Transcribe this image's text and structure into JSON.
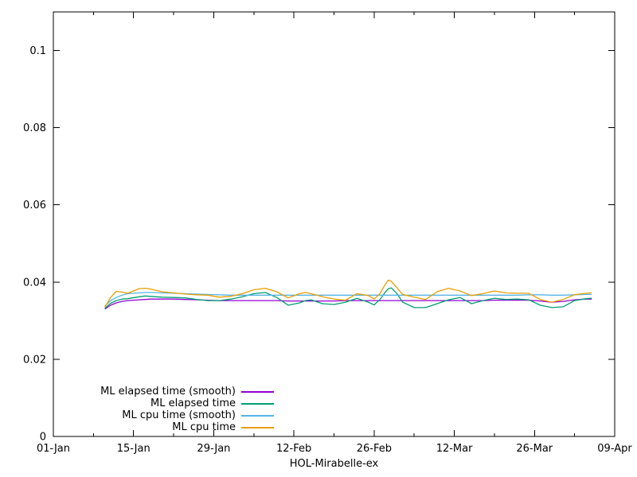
{
  "figure": {
    "background": "#ffffff",
    "text_color": "#000000",
    "axis_color": "#000000"
  },
  "chart_data": {
    "type": "line",
    "title": "",
    "xlabel": "HOL-Mirabelle-ex",
    "ylabel": "",
    "x_unit": "days since 01-Jan",
    "xlim": [
      0,
      98
    ],
    "ylim": [
      0,
      0.11
    ],
    "grid": false,
    "legend_position": "bottom-left-inside",
    "xticks": [
      0,
      14,
      28,
      42,
      56,
      70,
      84,
      98
    ],
    "xtick_labels": [
      "01-Jan",
      "15-Jan",
      "29-Jan",
      "12-Feb",
      "26-Feb",
      "12-Mar",
      "26-Mar",
      "09-Apr"
    ],
    "minor_xticks": [
      7,
      21,
      35,
      49,
      63,
      77,
      91
    ],
    "yticks": [
      0,
      0.02,
      0.04,
      0.06,
      0.08,
      0.1
    ],
    "ytick_labels": [
      "0",
      "0.02",
      "0.04",
      "0.06",
      "0.08",
      "0.1"
    ],
    "x": [
      9,
      10,
      11,
      12,
      13,
      15,
      16,
      17,
      19,
      21,
      23,
      25,
      27,
      29,
      31,
      33,
      35,
      37,
      39,
      41,
      43,
      44,
      45,
      47,
      49,
      51,
      53,
      55,
      56,
      57,
      58,
      58.5,
      59,
      60,
      61,
      63,
      65,
      67,
      69,
      71,
      73,
      75,
      77,
      79,
      81,
      83,
      85,
      87,
      89,
      91,
      93,
      94
    ],
    "series": [
      {
        "name": "ML elapsed time (smooth)",
        "color": "#9400d3",
        "values": [
          0.033,
          0.034,
          0.0346,
          0.035,
          0.0352,
          0.0354,
          0.0355,
          0.0356,
          0.0356,
          0.0356,
          0.0355,
          0.0354,
          0.0353,
          0.0352,
          0.0352,
          0.0352,
          0.0352,
          0.0352,
          0.0352,
          0.0351,
          0.0351,
          0.0351,
          0.0351,
          0.0351,
          0.0351,
          0.0352,
          0.0352,
          0.0352,
          0.0352,
          0.0352,
          0.0352,
          0.0352,
          0.0352,
          0.0352,
          0.0352,
          0.0352,
          0.0352,
          0.0352,
          0.0352,
          0.0352,
          0.0352,
          0.0352,
          0.0353,
          0.0353,
          0.0353,
          0.0353,
          0.0351,
          0.0348,
          0.035,
          0.0354,
          0.0356,
          0.0356
        ]
      },
      {
        "name": "ML elapsed time",
        "color": "#009e73",
        "values": [
          0.0332,
          0.0345,
          0.0352,
          0.0356,
          0.0357,
          0.0362,
          0.0364,
          0.0363,
          0.0361,
          0.036,
          0.0359,
          0.0355,
          0.0352,
          0.0352,
          0.0356,
          0.0362,
          0.037,
          0.0373,
          0.036,
          0.034,
          0.0346,
          0.0352,
          0.0354,
          0.0344,
          0.0342,
          0.0348,
          0.0358,
          0.0348,
          0.0341,
          0.0355,
          0.0375,
          0.0383,
          0.0385,
          0.037,
          0.0348,
          0.0334,
          0.0334,
          0.0344,
          0.0354,
          0.036,
          0.0344,
          0.0352,
          0.0358,
          0.0355,
          0.0356,
          0.0354,
          0.034,
          0.0334,
          0.0336,
          0.0352,
          0.0357,
          0.0358
        ]
      },
      {
        "name": "ML cpu time (smooth)",
        "color": "#56b4e9",
        "values": [
          0.0338,
          0.0352,
          0.036,
          0.0366,
          0.037,
          0.0372,
          0.0373,
          0.0373,
          0.0372,
          0.0371,
          0.037,
          0.0369,
          0.0368,
          0.0367,
          0.0366,
          0.0366,
          0.0366,
          0.0366,
          0.0366,
          0.0366,
          0.0366,
          0.0366,
          0.0366,
          0.0366,
          0.0366,
          0.0366,
          0.0366,
          0.0366,
          0.0366,
          0.0366,
          0.0366,
          0.0366,
          0.0366,
          0.0366,
          0.0366,
          0.0366,
          0.0366,
          0.0366,
          0.0366,
          0.0366,
          0.0366,
          0.0366,
          0.0366,
          0.0366,
          0.0366,
          0.0367,
          0.0367,
          0.0366,
          0.0366,
          0.0367,
          0.0368,
          0.0368
        ]
      },
      {
        "name": "ML cpu time",
        "color": "#e69f00",
        "values": [
          0.0335,
          0.036,
          0.0376,
          0.0374,
          0.0371,
          0.0383,
          0.0384,
          0.0382,
          0.0375,
          0.0372,
          0.0369,
          0.0367,
          0.0366,
          0.0361,
          0.0363,
          0.037,
          0.038,
          0.0384,
          0.0375,
          0.0359,
          0.037,
          0.0373,
          0.037,
          0.0362,
          0.0356,
          0.0353,
          0.037,
          0.0365,
          0.0356,
          0.037,
          0.0395,
          0.0405,
          0.0402,
          0.0385,
          0.0368,
          0.0361,
          0.0355,
          0.0375,
          0.0384,
          0.0377,
          0.0365,
          0.037,
          0.0377,
          0.0372,
          0.0371,
          0.0371,
          0.0355,
          0.0348,
          0.0355,
          0.0367,
          0.0371,
          0.0372
        ]
      }
    ]
  }
}
